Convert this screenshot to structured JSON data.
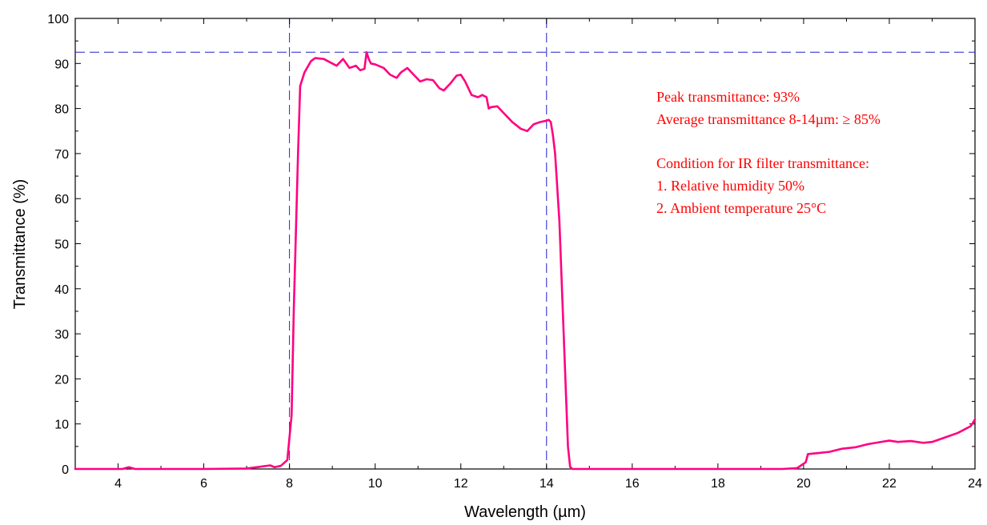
{
  "chart_data": {
    "type": "line",
    "title": "",
    "xlabel": "Wavelength (µm)",
    "ylabel": "Transmittance (%)",
    "xlim": [
      3,
      24
    ],
    "ylim": [
      0,
      100
    ],
    "x_ticks": [
      4,
      6,
      8,
      10,
      12,
      14,
      16,
      18,
      20,
      22,
      24
    ],
    "y_ticks": [
      0,
      10,
      20,
      30,
      40,
      50,
      60,
      70,
      80,
      90,
      100
    ],
    "grid": false,
    "legend": "none",
    "colors": {
      "series": "#ff0080",
      "reference": "#2222cc",
      "annotation": "#ff0000",
      "axis": "#000000"
    },
    "reference_lines": {
      "vertical_x": [
        8,
        14
      ],
      "horizontal_y": [
        92.5
      ]
    },
    "annotations": [
      "Peak transmittance: 93%",
      "Average transmittance 8-14µm: ≥  85%",
      "Condition for IR filter transmittance:",
      "1. Relative humidity 50%",
      "2. Ambient temperature 25°C"
    ],
    "series": [
      {
        "x": [
          3.0,
          4.1,
          4.25,
          4.4,
          5.0,
          6.0,
          7.0,
          7.55,
          7.65,
          7.8,
          7.95,
          8.0,
          8.05,
          8.1,
          8.2,
          8.25,
          8.35,
          8.5,
          8.6,
          8.8,
          9.0,
          9.1,
          9.25,
          9.4,
          9.55,
          9.65,
          9.75,
          9.8,
          9.85,
          9.9,
          10.0,
          10.2,
          10.35,
          10.5,
          10.6,
          10.75,
          10.9,
          11.05,
          11.2,
          11.35,
          11.5,
          11.6,
          11.75,
          11.9,
          12.0,
          12.1,
          12.25,
          12.4,
          12.5,
          12.6,
          12.65,
          12.7,
          12.85,
          13.0,
          13.2,
          13.4,
          13.55,
          13.7,
          13.85,
          14.0,
          14.05,
          14.1,
          14.15,
          14.2,
          14.3,
          14.4,
          14.5,
          14.55,
          14.6,
          15.0,
          16.0,
          17.0,
          18.0,
          19.0,
          19.5,
          19.85,
          20.05,
          20.1,
          20.3,
          20.6,
          20.9,
          21.2,
          21.5,
          21.8,
          22.0,
          22.2,
          22.5,
          22.8,
          23.0,
          23.3,
          23.6,
          23.9,
          24.0
        ],
        "values": [
          0,
          0,
          0.4,
          0,
          0,
          0,
          0.1,
          0.8,
          0.4,
          0.7,
          2.0,
          7.0,
          12.0,
          35.0,
          70.0,
          85.0,
          88.0,
          90.5,
          91.2,
          91.0,
          90.0,
          89.5,
          91.0,
          89.0,
          89.5,
          88.5,
          88.8,
          92.5,
          91.0,
          90.0,
          89.8,
          89.0,
          87.5,
          86.8,
          88.0,
          89.0,
          87.5,
          86.0,
          86.5,
          86.3,
          84.5,
          84.0,
          85.5,
          87.3,
          87.5,
          86.0,
          83.0,
          82.5,
          83.0,
          82.5,
          80.0,
          80.3,
          80.5,
          79.0,
          77.0,
          75.5,
          75.0,
          76.5,
          77.0,
          77.3,
          77.5,
          77.0,
          74.0,
          70.0,
          55.0,
          30.0,
          5.0,
          0.5,
          0,
          0,
          0,
          0,
          0,
          0,
          0,
          0.2,
          1.5,
          3.3,
          3.5,
          3.8,
          4.5,
          4.8,
          5.5,
          6.0,
          6.3,
          6.0,
          6.2,
          5.8,
          6.0,
          7.0,
          8.0,
          9.5,
          11.0
        ]
      }
    ]
  }
}
